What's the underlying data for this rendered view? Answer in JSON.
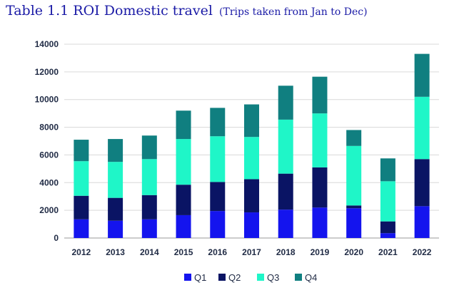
{
  "title": "Table 1.1 ROI Domestic travel",
  "subtitle": "(Trips taken from Jan to Dec)",
  "chart_data": {
    "type": "bar",
    "stacked": true,
    "categories": [
      "2012",
      "2013",
      "2014",
      "2015",
      "2016",
      "2017",
      "2018",
      "2019",
      "2020",
      "2021",
      "2022"
    ],
    "series": [
      {
        "name": "Q1",
        "color": "#1414ee",
        "values": [
          1350,
          1250,
          1350,
          1650,
          1950,
          1850,
          2050,
          2200,
          2150,
          350,
          2300
        ]
      },
      {
        "name": "Q2",
        "color": "#0a1464",
        "values": [
          1700,
          1650,
          1750,
          2200,
          2100,
          2400,
          2600,
          2900,
          200,
          850,
          3400
        ]
      },
      {
        "name": "Q3",
        "color": "#1ff6c8",
        "values": [
          2500,
          2600,
          2600,
          3300,
          3300,
          3050,
          3900,
          3900,
          4300,
          2900,
          4500
        ]
      },
      {
        "name": "Q4",
        "color": "#107f80",
        "values": [
          1550,
          1650,
          1700,
          2050,
          2050,
          2350,
          2450,
          2650,
          1150,
          1650,
          3100
        ]
      }
    ],
    "yticks": [
      "0",
      "2000",
      "4000",
      "6000",
      "8000",
      "10000",
      "12000",
      "14000"
    ],
    "ylim": [
      0,
      14000
    ],
    "grid": true,
    "legend": "bottom"
  }
}
